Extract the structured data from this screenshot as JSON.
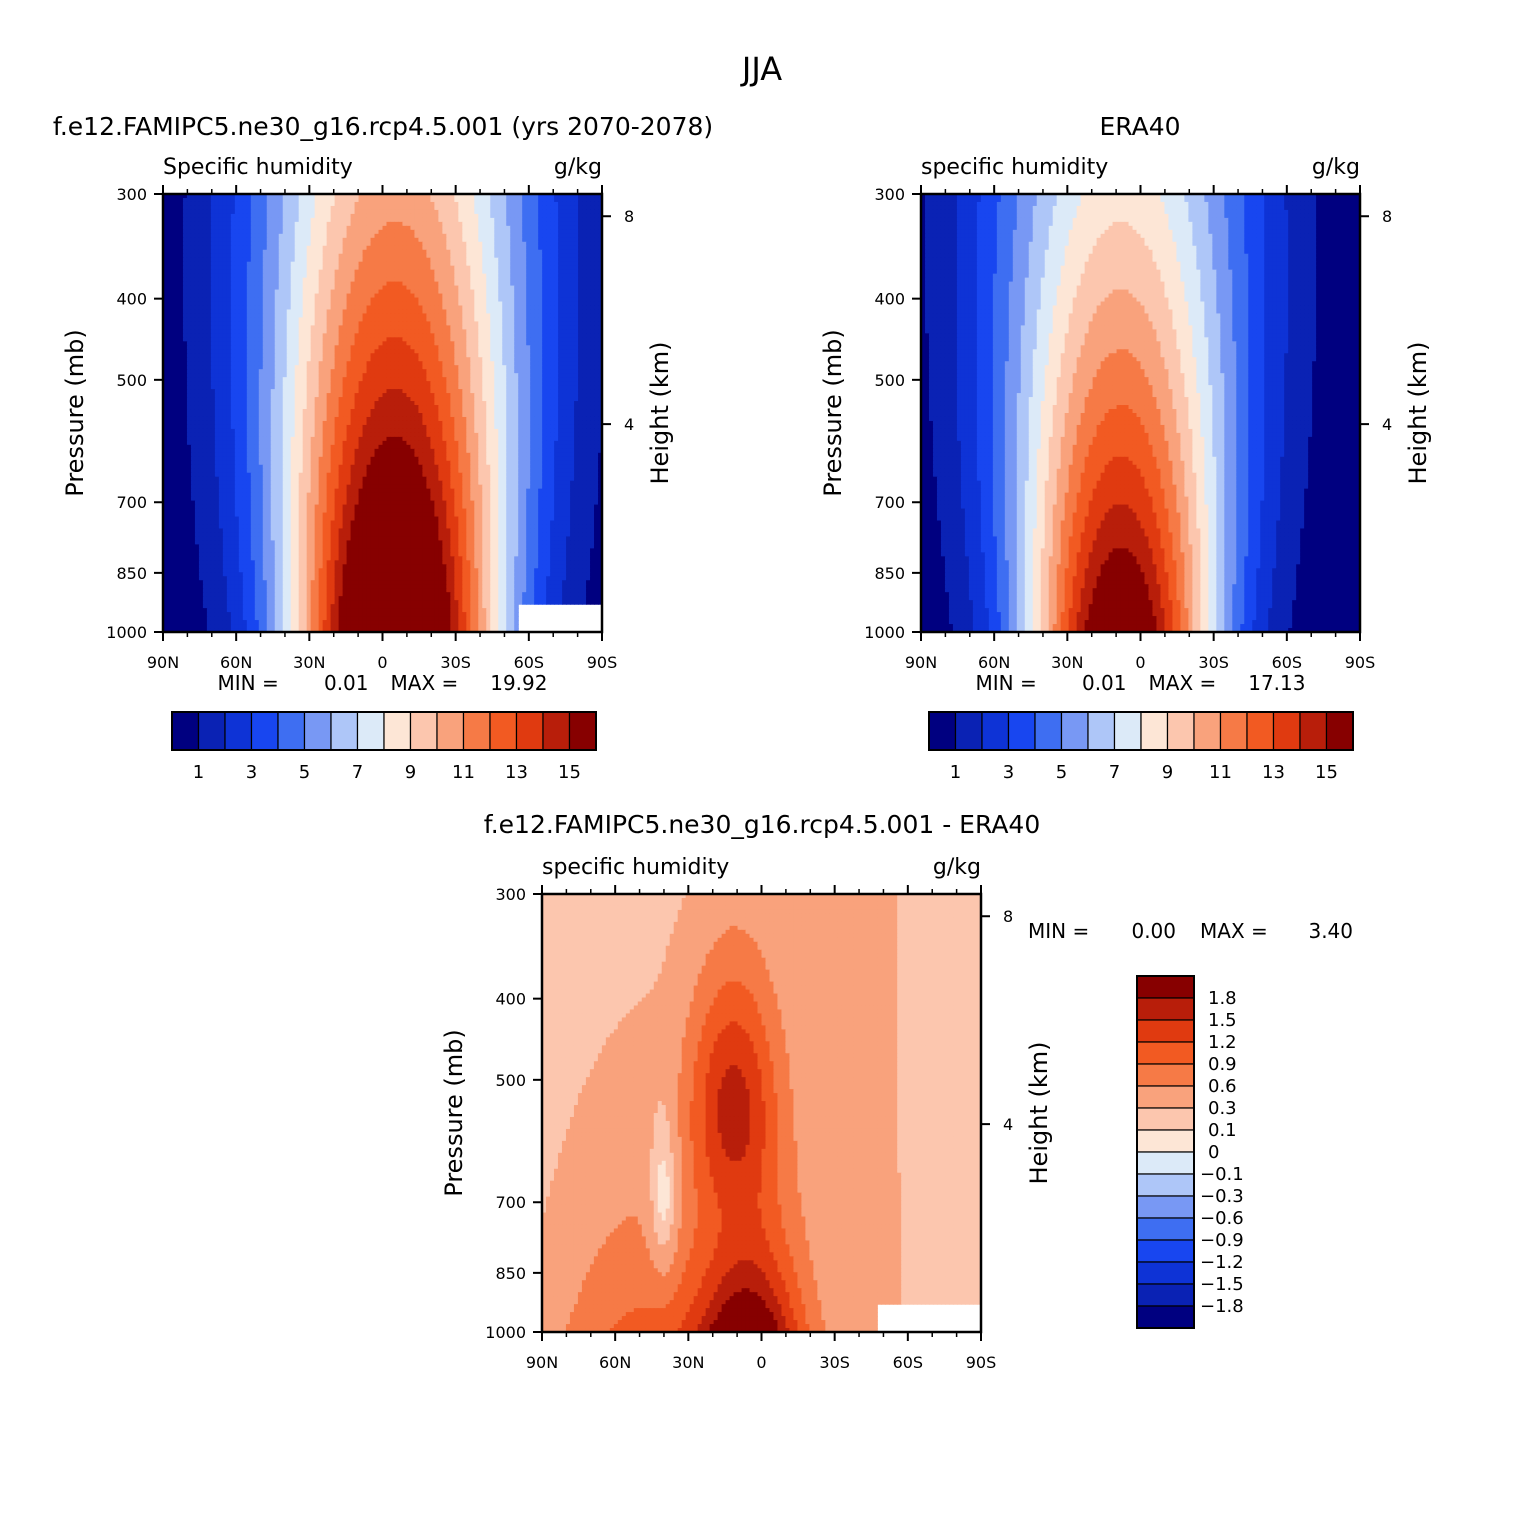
{
  "figure": {
    "title": "JJA"
  },
  "palette": {
    "blues": [
      "#000080",
      "#0a22b4",
      "#0e33d6",
      "#1846f0",
      "#3e6ef2",
      "#7898f4",
      "#aec6f8",
      "#dceaf8"
    ],
    "reds": [
      "#fde6d6",
      "#fcc6ae",
      "#f9a27c",
      "#f67a46",
      "#f25a22",
      "#e03a10",
      "#b81e0a",
      "#870000"
    ]
  },
  "chart_data": [
    {
      "type": "heatmap",
      "panel": "model",
      "title": "f.e12.FAMIPC5.ne30_g16.rcp4.5.001 (yrs 2070-2078)",
      "subtitle_left": "Specific humidity",
      "subtitle_right": "g/kg",
      "xlabel": "",
      "ylabel": "Pressure (mb)",
      "ylabel_right": "Height (km)",
      "x_ticks": [
        "90N",
        "60N",
        "30N",
        "0",
        "30S",
        "60S",
        "90S"
      ],
      "x_values": [
        90,
        60,
        30,
        0,
        -30,
        -60,
        -90
      ],
      "y_ticks": [
        300,
        400,
        500,
        700,
        850,
        1000
      ],
      "y_right_ticks": [
        8,
        4
      ],
      "ylim": [
        1000,
        300
      ],
      "xlim": [
        90,
        -90
      ],
      "y_scale": "log",
      "min_label": "MIN =",
      "min_value": "0.01",
      "max_label": "MAX =",
      "max_value": "19.92",
      "levels": [
        1,
        2,
        3,
        4,
        5,
        6,
        7,
        8,
        9,
        10,
        11,
        12,
        13,
        14,
        15
      ],
      "colorbar_labels": [
        "1",
        "3",
        "5",
        "7",
        "9",
        "11",
        "13",
        "15"
      ],
      "colorbar_orientation": "horizontal",
      "peak": {
        "lat": -5,
        "pressure": 1000,
        "value": 19.92
      },
      "missing_region": {
        "lat_from": -55,
        "lat_to": -90,
        "pressure_from": 925,
        "pressure_to": 1000
      }
    },
    {
      "type": "heatmap",
      "panel": "observation",
      "title": "ERA40",
      "subtitle_left": "specific humidity",
      "subtitle_right": "g/kg",
      "xlabel": "",
      "ylabel": "Pressure (mb)",
      "ylabel_right": "Height (km)",
      "x_ticks": [
        "90N",
        "60N",
        "30N",
        "0",
        "30S",
        "60S",
        "90S"
      ],
      "x_values": [
        90,
        60,
        30,
        0,
        -30,
        -60,
        -90
      ],
      "y_ticks": [
        300,
        400,
        500,
        700,
        850,
        1000
      ],
      "y_right_ticks": [
        8,
        4
      ],
      "ylim": [
        1000,
        300
      ],
      "xlim": [
        90,
        -90
      ],
      "y_scale": "log",
      "min_label": "MIN =",
      "min_value": "0.01",
      "max_label": "MAX =",
      "max_value": "17.13",
      "levels": [
        1,
        2,
        3,
        4,
        5,
        6,
        7,
        8,
        9,
        10,
        11,
        12,
        13,
        14,
        15
      ],
      "colorbar_labels": [
        "1",
        "3",
        "5",
        "7",
        "9",
        "11",
        "13",
        "15"
      ],
      "colorbar_orientation": "horizontal",
      "peak": {
        "lat": 10,
        "pressure": 1000,
        "value": 17.13
      }
    },
    {
      "type": "heatmap",
      "panel": "difference",
      "title": "f.e12.FAMIPC5.ne30_g16.rcp4.5.001 - ERA40",
      "subtitle_left": "specific humidity",
      "subtitle_right": "g/kg",
      "xlabel": "",
      "ylabel": "Pressure (mb)",
      "ylabel_right": "Height (km)",
      "x_ticks": [
        "90N",
        "60N",
        "30N",
        "0",
        "30S",
        "60S",
        "90S"
      ],
      "x_values": [
        90,
        60,
        30,
        0,
        -30,
        -60,
        -90
      ],
      "y_ticks": [
        300,
        400,
        500,
        700,
        850,
        1000
      ],
      "y_right_ticks": [
        8,
        4
      ],
      "ylim": [
        1000,
        300
      ],
      "xlim": [
        90,
        -90
      ],
      "y_scale": "log",
      "min_label": "MIN =",
      "min_value": "0.00",
      "max_label": "MAX =",
      "max_value": "3.40",
      "levels": [
        -1.8,
        -1.5,
        -1.2,
        -0.9,
        -0.6,
        -0.3,
        -0.1,
        0,
        0.1,
        0.3,
        0.6,
        0.9,
        1.2,
        1.5,
        1.8
      ],
      "colorbar_labels": [
        "1.8",
        "1.5",
        "1.2",
        "0.9",
        "0.6",
        "0.3",
        "0.1",
        "0",
        "-0.1",
        "-0.3",
        "-0.6",
        "-0.9",
        "-1.2",
        "-1.5",
        "-1.8"
      ],
      "colorbar_orientation": "vertical",
      "missing_region": {
        "lat_from": -48,
        "lat_to": -90,
        "pressure_from": 925,
        "pressure_to": 1000
      }
    }
  ]
}
